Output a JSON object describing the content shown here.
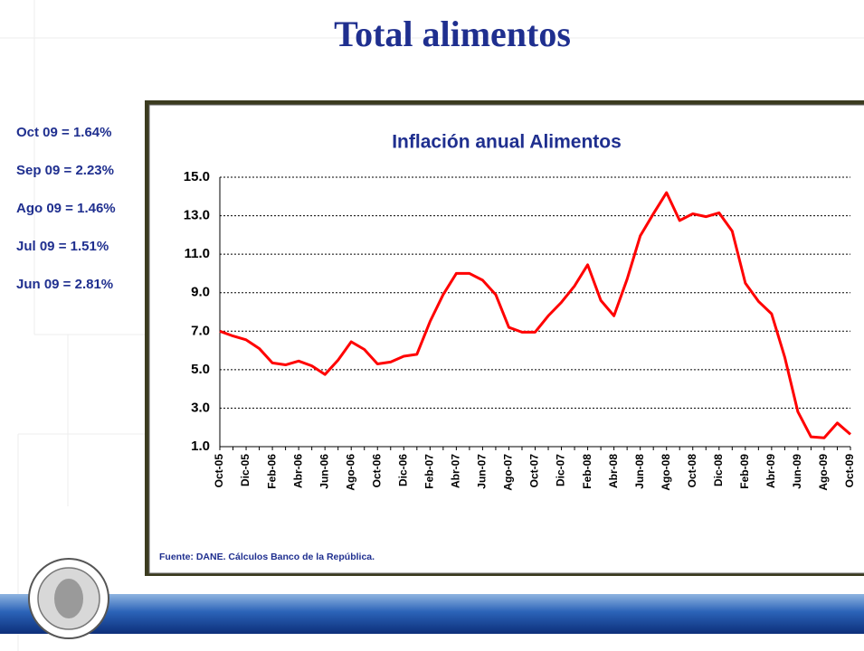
{
  "slide_title": "Total alimentos",
  "annotations": [
    "Oct 09 = 1.64%",
    "Sep 09 = 2.23%",
    "Ago 09 = 1.46%",
    "Jul 09 = 1.51%",
    "Jun 09 = 2.81%"
  ],
  "chart_data": {
    "type": "line",
    "title": "Inflación anual Alimentos",
    "source": "Fuente: DANE. Cálculos Banco de la República.",
    "categories": [
      "Oct-05",
      null,
      "Dic-05",
      null,
      "Feb-06",
      null,
      "Abr-06",
      null,
      "Jun-06",
      null,
      "Ago-06",
      null,
      "Oct-06",
      null,
      "Dic-06",
      null,
      "Feb-07",
      null,
      "Abr-07",
      null,
      "Jun-07",
      null,
      "Ago-07",
      null,
      "Oct-07",
      null,
      "Dic-07",
      null,
      "Feb-08",
      null,
      "Abr-08",
      null,
      "Jun-08",
      null,
      "Ago-08",
      null,
      "Oct-08",
      null,
      "Dic-08",
      null,
      "Feb-09",
      null,
      "Abr-09",
      null,
      "Jun-09",
      null,
      "Ago-09",
      null,
      "Oct-09"
    ],
    "series": [
      {
        "name": "Inflación anual Alimentos",
        "color": "#ff0000",
        "values": [
          7.0,
          6.75,
          6.55,
          6.1,
          5.35,
          5.25,
          5.45,
          5.2,
          4.75,
          5.5,
          6.45,
          6.05,
          5.3,
          5.4,
          5.7,
          5.8,
          7.5,
          8.9,
          10.0,
          10.0,
          9.65,
          8.9,
          7.2,
          6.95,
          6.95,
          7.8,
          8.5,
          9.35,
          10.45,
          8.6,
          7.8,
          9.7,
          11.95,
          13.1,
          14.2,
          12.75,
          13.1,
          12.95,
          13.15,
          12.2,
          9.5,
          8.55,
          7.9,
          5.65,
          2.81,
          1.51,
          1.46,
          2.23,
          1.64
        ]
      }
    ],
    "ylim": [
      1,
      15
    ],
    "yticks": [
      {
        "value": 1,
        "label": "1.0"
      },
      {
        "value": 3,
        "label": "3.0"
      },
      {
        "value": 5,
        "label": "5.0"
      },
      {
        "value": 7,
        "label": "7.0"
      },
      {
        "value": 9,
        "label": "9.0"
      },
      {
        "value": 11,
        "label": "11.0"
      },
      {
        "value": 13,
        "label": "13.0"
      },
      {
        "value": 15,
        "label": "15.0"
      }
    ],
    "grid": true
  }
}
